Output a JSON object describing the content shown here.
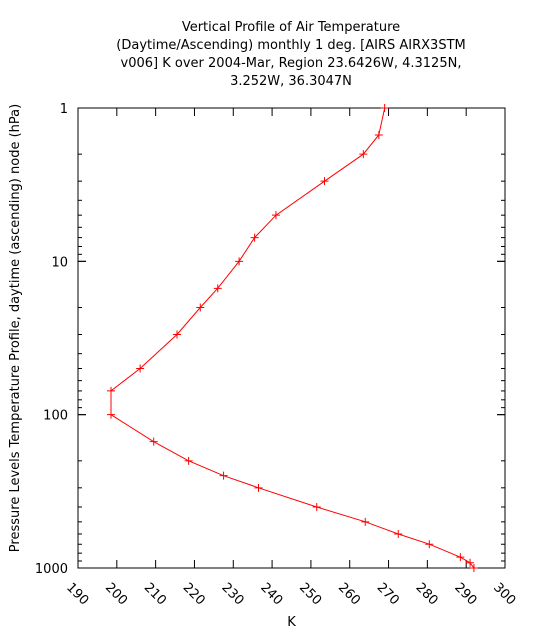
{
  "chart_data": {
    "type": "line",
    "title_lines": [
      "Vertical Profile of Air Temperature",
      "(Daytime/Ascending) monthly 1 deg. [AIRS AIRX3STM",
      "v006] K over 2004-Mar, Region 23.6426W, 4.3125N,",
      "3.252W, 36.3047N"
    ],
    "xlabel": "K",
    "ylabel": "Pressure Levels Temperature Profile, daytime (ascending) node (hPa)",
    "xlim": [
      190,
      300
    ],
    "ylim": [
      1000,
      1
    ],
    "yscale": "log",
    "y_inverted": true,
    "grid": false,
    "x_ticks": [
      190,
      200,
      210,
      220,
      230,
      240,
      250,
      260,
      270,
      280,
      290,
      300
    ],
    "x_tick_labels": [
      "190",
      "200",
      "210",
      "220",
      "230",
      "240",
      "250",
      "260",
      "270",
      "280",
      "290",
      "300"
    ],
    "y_major_ticks": [
      1,
      10,
      100,
      1000
    ],
    "y_tick_labels": [
      "1",
      "10",
      "100",
      "1000"
    ],
    "series": [
      {
        "color": "#ff0000",
        "marker": "+",
        "points": [
          {
            "p": 1,
            "t": 269.0
          },
          {
            "p": 1.5,
            "t": 267.5
          },
          {
            "p": 2,
            "t": 263.5
          },
          {
            "p": 3,
            "t": 253.5
          },
          {
            "p": 5,
            "t": 241.0
          },
          {
            "p": 7,
            "t": 235.5
          },
          {
            "p": 10,
            "t": 231.5
          },
          {
            "p": 15,
            "t": 226.0
          },
          {
            "p": 20,
            "t": 221.5
          },
          {
            "p": 30,
            "t": 215.5
          },
          {
            "p": 50,
            "t": 206.0
          },
          {
            "p": 70,
            "t": 198.5
          },
          {
            "p": 100,
            "t": 198.5
          },
          {
            "p": 150,
            "t": 209.5
          },
          {
            "p": 200,
            "t": 218.5
          },
          {
            "p": 250,
            "t": 227.5
          },
          {
            "p": 300,
            "t": 236.5
          },
          {
            "p": 400,
            "t": 251.5
          },
          {
            "p": 500,
            "t": 264.0
          },
          {
            "p": 600,
            "t": 272.5
          },
          {
            "p": 700,
            "t": 280.5
          },
          {
            "p": 850,
            "t": 288.5
          },
          {
            "p": 925,
            "t": 291.0
          },
          {
            "p": 1000,
            "t": 292.0
          }
        ]
      }
    ]
  }
}
